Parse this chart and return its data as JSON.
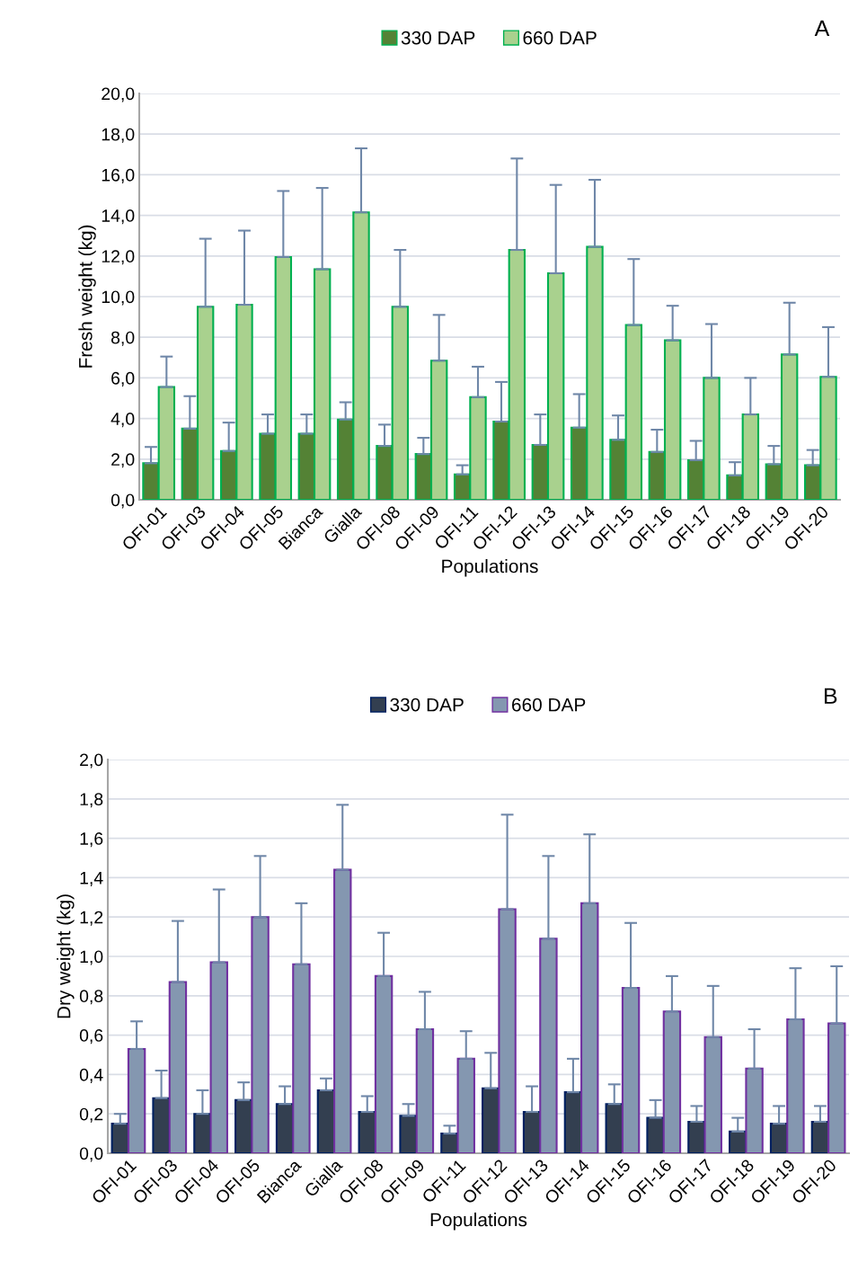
{
  "chart_data": [
    {
      "type": "bar",
      "xlabel": "Populations",
      "ylabel": "Fresh weight (kg)",
      "annotations": [
        "A"
      ],
      "categories": [
        "OFI-01",
        "OFI-03",
        "OFI-04",
        "OFI-05",
        "Bianca",
        "Gialla",
        "OFI-08",
        "OFI-09",
        "OFI-11",
        "OFI-12",
        "OFI-13",
        "OFI-14",
        "OFI-15",
        "OFI-16",
        "OFI-17",
        "OFI-18",
        "OFI-19",
        "OFI-20"
      ],
      "series": [
        {
          "name": "330 DAP",
          "color": "#548235",
          "values": [
            1.8,
            3.5,
            2.4,
            3.25,
            3.25,
            3.95,
            2.65,
            2.25,
            1.25,
            3.85,
            2.7,
            3.55,
            2.95,
            2.35,
            1.95,
            1.2,
            1.75,
            1.7
          ],
          "errors": [
            [
              1.8,
              2.6
            ],
            [
              3.5,
              5.1
            ],
            [
              2.4,
              3.8
            ],
            [
              3.25,
              4.2
            ],
            [
              3.25,
              4.2
            ],
            [
              3.95,
              4.8
            ],
            [
              2.65,
              3.7
            ],
            [
              2.25,
              3.05
            ],
            [
              1.25,
              1.7
            ],
            [
              3.85,
              5.8
            ],
            [
              2.7,
              4.2
            ],
            [
              3.55,
              5.2
            ],
            [
              2.95,
              4.15
            ],
            [
              2.35,
              3.45
            ],
            [
              1.95,
              2.9
            ],
            [
              1.2,
              1.85
            ],
            [
              1.75,
              2.65
            ],
            [
              1.7,
              2.45
            ]
          ]
        },
        {
          "name": "660 DAP",
          "color": "#a9d18e",
          "values": [
            5.55,
            9.5,
            9.6,
            11.95,
            11.35,
            14.15,
            9.5,
            6.85,
            5.05,
            12.3,
            11.15,
            12.45,
            8.6,
            7.85,
            6.0,
            4.2,
            7.15,
            6.05
          ],
          "errors": [
            [
              5.55,
              7.05
            ],
            [
              9.5,
              12.85
            ],
            [
              9.6,
              13.25
            ],
            [
              11.95,
              15.2
            ],
            [
              11.35,
              15.35
            ],
            [
              14.15,
              17.3
            ],
            [
              9.5,
              12.3
            ],
            [
              6.85,
              9.1
            ],
            [
              5.05,
              6.55
            ],
            [
              12.3,
              16.8
            ],
            [
              11.15,
              15.5
            ],
            [
              12.45,
              15.75
            ],
            [
              8.6,
              11.85
            ],
            [
              7.85,
              9.55
            ],
            [
              6.0,
              8.65
            ],
            [
              4.2,
              6.0
            ],
            [
              7.15,
              9.7
            ],
            [
              6.05,
              8.5
            ]
          ]
        }
      ],
      "ylim": [
        0,
        20
      ],
      "yticks": [
        {
          "value": 0,
          "label": "0,0"
        },
        {
          "value": 2,
          "label": "2,0"
        },
        {
          "value": 4,
          "label": "4,0"
        },
        {
          "value": 6,
          "label": "6,0"
        },
        {
          "value": 8,
          "label": "8,0"
        },
        {
          "value": 10,
          "label": "10,0"
        },
        {
          "value": 12,
          "label": "12,0"
        },
        {
          "value": 14,
          "label": "14,0"
        },
        {
          "value": 16,
          "label": "16,0"
        },
        {
          "value": 18,
          "label": "18,0"
        },
        {
          "value": 20,
          "label": "20,0"
        }
      ],
      "grid": "y",
      "legend": "top"
    },
    {
      "type": "bar",
      "xlabel": "Populations",
      "ylabel": "Dry weight (kg)",
      "annotations": [
        "B"
      ],
      "categories": [
        "OFI-01",
        "OFI-03",
        "OFI-04",
        "OFI-05",
        "Bianca",
        "Gialla",
        "OFI-08",
        "OFI-09",
        "OFI-11",
        "OFI-12",
        "OFI-13",
        "OFI-14",
        "OFI-15",
        "OFI-16",
        "OFI-17",
        "OFI-18",
        "OFI-19",
        "OFI-20"
      ],
      "series": [
        {
          "name": "330 DAP",
          "color": "#333f50",
          "values": [
            0.15,
            0.28,
            0.2,
            0.27,
            0.25,
            0.32,
            0.21,
            0.19,
            0.1,
            0.33,
            0.21,
            0.31,
            0.25,
            0.18,
            0.16,
            0.11,
            0.15,
            0.16
          ],
          "errors": [
            [
              0.15,
              0.2
            ],
            [
              0.28,
              0.42
            ],
            [
              0.2,
              0.32
            ],
            [
              0.27,
              0.36
            ],
            [
              0.25,
              0.34
            ],
            [
              0.32,
              0.38
            ],
            [
              0.21,
              0.29
            ],
            [
              0.19,
              0.25
            ],
            [
              0.1,
              0.14
            ],
            [
              0.33,
              0.51
            ],
            [
              0.21,
              0.34
            ],
            [
              0.31,
              0.48
            ],
            [
              0.25,
              0.35
            ],
            [
              0.18,
              0.27
            ],
            [
              0.16,
              0.24
            ],
            [
              0.11,
              0.18
            ],
            [
              0.15,
              0.24
            ],
            [
              0.16,
              0.24
            ]
          ]
        },
        {
          "name": "660 DAP",
          "color": "#8497b0",
          "values": [
            0.53,
            0.87,
            0.97,
            1.2,
            0.96,
            1.44,
            0.9,
            0.63,
            0.48,
            1.24,
            1.09,
            1.27,
            0.84,
            0.72,
            0.59,
            0.43,
            0.68,
            0.66
          ],
          "errors": [
            [
              0.53,
              0.67
            ],
            [
              0.87,
              1.18
            ],
            [
              0.97,
              1.34
            ],
            [
              1.2,
              1.51
            ],
            [
              0.96,
              1.27
            ],
            [
              1.44,
              1.77
            ],
            [
              0.9,
              1.12
            ],
            [
              0.63,
              0.82
            ],
            [
              0.48,
              0.62
            ],
            [
              1.24,
              1.72
            ],
            [
              1.09,
              1.51
            ],
            [
              1.27,
              1.62
            ],
            [
              0.84,
              1.17
            ],
            [
              0.72,
              0.9
            ],
            [
              0.59,
              0.85
            ],
            [
              0.43,
              0.63
            ],
            [
              0.68,
              0.94
            ],
            [
              0.66,
              0.95
            ]
          ]
        }
      ],
      "ylim": [
        0,
        2
      ],
      "yticks": [
        {
          "value": 0,
          "label": "0,0"
        },
        {
          "value": 0.2,
          "label": "0,2"
        },
        {
          "value": 0.4,
          "label": "0,4"
        },
        {
          "value": 0.6,
          "label": "0,6"
        },
        {
          "value": 0.8,
          "label": "0,8"
        },
        {
          "value": 1.0,
          "label": "1,0"
        },
        {
          "value": 1.2,
          "label": "1,2"
        },
        {
          "value": 1.4,
          "label": "1,4"
        },
        {
          "value": 1.6,
          "label": "1,6"
        },
        {
          "value": 1.8,
          "label": "1,8"
        },
        {
          "value": 2.0,
          "label": "2,0"
        }
      ],
      "grid": "y",
      "legend": "top"
    }
  ]
}
